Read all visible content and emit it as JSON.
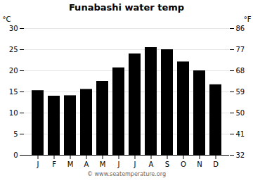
{
  "chart_data": {
    "type": "bar",
    "title": "Funabashi water temp",
    "categories": [
      "J",
      "F",
      "M",
      "A",
      "M",
      "J",
      "J",
      "A",
      "S",
      "O",
      "N",
      "D"
    ],
    "values": [
      15.3,
      14.0,
      14.1,
      15.6,
      17.5,
      20.7,
      24.0,
      25.5,
      25.0,
      22.1,
      20.0,
      16.7
    ],
    "ylabel": "°C",
    "y2label": "°F",
    "ylim": [
      0,
      30
    ],
    "yticks": [
      0,
      5,
      10,
      15,
      20,
      25,
      30
    ],
    "y2lim": [
      32,
      86
    ],
    "y2ticks": [
      32,
      41,
      50,
      59,
      68,
      77,
      86
    ],
    "grid": true,
    "annotations": [
      "© www.seatemperature.org"
    ]
  }
}
